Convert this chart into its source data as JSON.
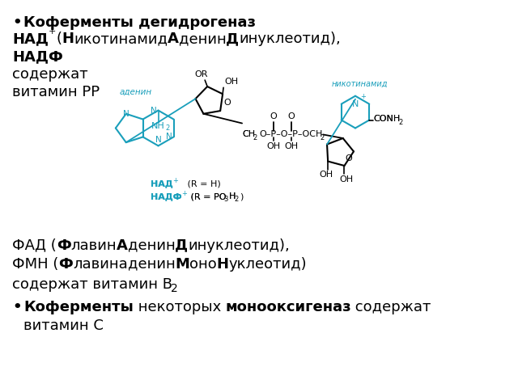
{
  "bg_color": "#ffffff",
  "text_color": "#000000",
  "cyan_color": "#1a9fbb",
  "figsize": [
    6.4,
    4.8
  ],
  "dpi": 100,
  "line1_bullet": "•",
  "line1_text": "Коферменты дегидрогеназ",
  "nad_label": "НАД",
  "nad_sup": "+",
  "nad_rest1": "(",
  "nad_N": "Н",
  "nad_ikotinamid": "икотинамид",
  "nad_A": "А",
  "nad_denin": "денин",
  "nad_D": "Д",
  "nad_inukleotid": "инуклеотид),",
  "nadf_text": "НАДФ",
  "soderz": "содержат",
  "vitamin_pp": "витамин РР",
  "fad_line": "ФАД (ФлавинАденинДинуклеотид),",
  "fmn_line": "ФМН (ФлавинаденинМоноНуклеотид)",
  "soderz_b2": "содержат витамин В",
  "last_bullet": "•",
  "last1_bold": "Коферменты",
  "last1_norm": " некоторых ",
  "last1_bold2": "монооксигеназ",
  "last1_norm2": " содержат",
  "last2": "витамин С"
}
